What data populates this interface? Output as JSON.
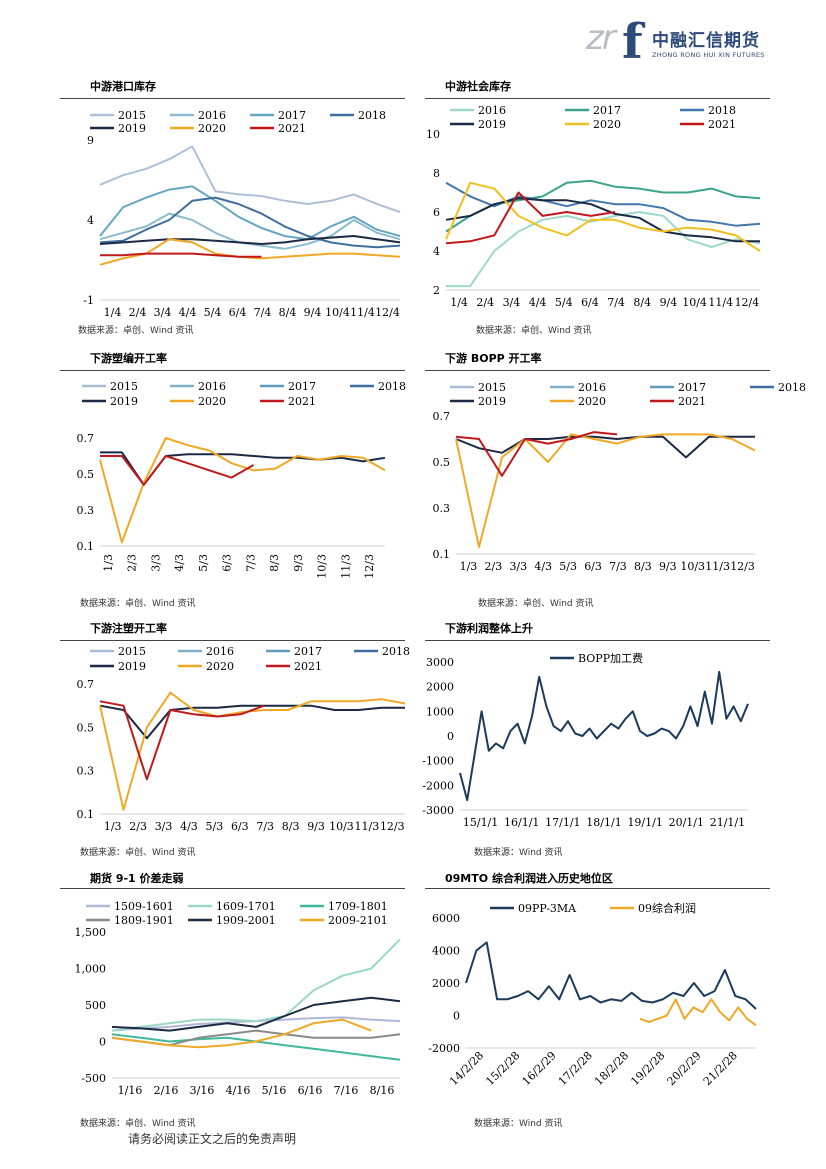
{
  "logo": {
    "mark": "zr",
    "f": "f",
    "cn": "中融汇信期货",
    "en": "ZHONG RONG HUI XIN FUTURES"
  },
  "disclaimer": "请务必阅读正文之后的免责声明",
  "colors": {
    "2015": "#a8bbd6",
    "2016": "#7fb1c8",
    "2017": "#5e9dbd",
    "2018": "#3f6fa0",
    "2019": "#1b2a44",
    "2020": "#f0a826",
    "2021": "#c0191c"
  },
  "chart_data": [
    {
      "id": "c1",
      "type": "line",
      "title": "中游港口库存",
      "source": "数据来源：卓创、Wind 资讯",
      "ylim": [
        -1,
        9
      ],
      "yticks": [
        "9",
        "4",
        "-1"
      ],
      "ytick_values": [
        9,
        4,
        -1
      ],
      "xticks": [
        "1/4",
        "2/4",
        "3/4",
        "4/4",
        "5/4",
        "6/4",
        "7/4",
        "8/4",
        "9/4",
        "10/4",
        "11/4",
        "12/4"
      ],
      "legend_rows": [
        [
          "2015",
          "2016",
          "2017",
          "2018"
        ],
        [
          "2019",
          "2020",
          "2021"
        ]
      ],
      "series": [
        {
          "name": "2015",
          "color": "#aebfd8",
          "values": [
            6.2,
            6.8,
            7.2,
            7.8,
            8.6,
            5.8,
            5.6,
            5.5,
            5.2,
            5.0,
            5.2,
            5.6,
            5.0,
            4.5
          ]
        },
        {
          "name": "2016",
          "color": "#8bbcd0",
          "values": [
            2.8,
            3.2,
            3.6,
            4.4,
            4.0,
            3.2,
            2.6,
            2.4,
            2.2,
            2.5,
            3.0,
            4.0,
            3.2,
            2.8
          ]
        },
        {
          "name": "2017",
          "color": "#66a6c2",
          "values": [
            3.0,
            4.8,
            5.4,
            5.9,
            6.1,
            5.2,
            4.2,
            3.5,
            3.0,
            2.8,
            3.6,
            4.2,
            3.4,
            3.0
          ]
        },
        {
          "name": "2018",
          "color": "#3f6f9e",
          "values": [
            2.6,
            2.7,
            3.4,
            4.0,
            5.2,
            5.4,
            5.0,
            4.4,
            3.6,
            3.0,
            2.6,
            2.4,
            2.3,
            2.4
          ]
        },
        {
          "name": "2019",
          "color": "#1b2a44",
          "values": [
            2.5,
            2.6,
            2.7,
            2.8,
            2.8,
            2.7,
            2.6,
            2.5,
            2.6,
            2.8,
            2.9,
            3.0,
            2.8,
            2.6
          ]
        },
        {
          "name": "2020",
          "color": "#f0a826",
          "values": [
            1.2,
            1.6,
            1.9,
            2.8,
            2.6,
            1.9,
            1.7,
            1.6,
            1.7,
            1.8,
            1.9,
            1.9,
            1.8,
            1.7
          ]
        },
        {
          "name": "2021",
          "color": "#c0191c",
          "values": [
            1.8,
            1.8,
            1.9,
            1.9,
            1.9,
            1.8,
            1.7,
            1.7
          ]
        }
      ]
    },
    {
      "id": "c2",
      "type": "line",
      "title": "中游社会库存",
      "source": "数据来源：卓创、Wind 资讯",
      "ylim": [
        2,
        10
      ],
      "yticks": [
        "10",
        "8",
        "6",
        "4",
        "2"
      ],
      "ytick_values": [
        10,
        8,
        6,
        4,
        2
      ],
      "xticks": [
        "1/4",
        "2/4",
        "3/4",
        "4/4",
        "5/4",
        "6/4",
        "7/4",
        "8/4",
        "9/4",
        "10/4",
        "11/4",
        "12/4"
      ],
      "legend_rows": [
        [
          "2016",
          "2017",
          "2018"
        ],
        [
          "2019",
          "2020",
          "2021"
        ]
      ],
      "series": [
        {
          "name": "2016",
          "color": "#9dd8c8",
          "values": [
            2.2,
            2.2,
            4.0,
            5.0,
            5.6,
            5.8,
            5.5,
            5.8,
            6.0,
            5.8,
            4.6,
            4.2,
            4.6,
            4.4
          ]
        },
        {
          "name": "2017",
          "color": "#3aa48a",
          "values": [
            5.0,
            5.8,
            6.4,
            6.6,
            6.8,
            7.5,
            7.6,
            7.3,
            7.2,
            7.0,
            7.0,
            7.2,
            6.8,
            6.7
          ]
        },
        {
          "name": "2018",
          "color": "#3f77ad",
          "values": [
            7.5,
            6.8,
            6.3,
            6.8,
            6.6,
            6.3,
            6.6,
            6.4,
            6.4,
            6.2,
            5.6,
            5.5,
            5.3,
            5.4
          ]
        },
        {
          "name": "2019",
          "color": "#1b2a44",
          "values": [
            5.6,
            5.8,
            6.4,
            6.7,
            6.6,
            6.6,
            6.4,
            5.9,
            5.7,
            5.0,
            4.8,
            4.7,
            4.5,
            4.5
          ]
        },
        {
          "name": "2020",
          "color": "#f0c020",
          "values": [
            4.6,
            7.5,
            7.2,
            5.8,
            5.2,
            4.8,
            5.6,
            5.6,
            5.2,
            5.0,
            5.2,
            5.1,
            4.8,
            4.0
          ]
        },
        {
          "name": "2021",
          "color": "#c0191c",
          "values": [
            4.4,
            4.5,
            4.8,
            7.0,
            5.8,
            6.0,
            5.8,
            6.0
          ]
        }
      ]
    },
    {
      "id": "c3",
      "type": "line",
      "title": "下游塑编开工率",
      "source": "数据来源：卓创、Wind 资讯",
      "ylim": [
        0.1,
        0.7
      ],
      "yticks": [
        "0.7",
        "0.5",
        "0.3",
        "0.1"
      ],
      "ytick_values": [
        0.7,
        0.5,
        0.3,
        0.1
      ],
      "xticks": [
        "1/3",
        "2/3",
        "3/3",
        "4/3",
        "5/3",
        "6/3",
        "7/3",
        "8/3",
        "9/3",
        "10/3",
        "11/3",
        "12/3"
      ],
      "xrotate": true,
      "legend_rows": [
        [
          "2015",
          "2016",
          "2017",
          "2018"
        ],
        [
          "2019",
          "2020",
          "2021"
        ]
      ],
      "series": [
        {
          "name": "2019",
          "color": "#1b2a44",
          "values": [
            0.62,
            0.62,
            0.44,
            0.6,
            0.61,
            0.61,
            0.61,
            0.6,
            0.59,
            0.59,
            0.58,
            0.59,
            0.57,
            0.59
          ]
        },
        {
          "name": "2020",
          "color": "#f0a826",
          "values": [
            0.58,
            0.12,
            0.45,
            0.7,
            0.66,
            0.63,
            0.56,
            0.52,
            0.53,
            0.6,
            0.58,
            0.6,
            0.59,
            0.52
          ]
        },
        {
          "name": "2021",
          "color": "#c0191c",
          "values": [
            0.6,
            0.6,
            0.44,
            0.6,
            0.56,
            0.52,
            0.48,
            0.55
          ]
        }
      ]
    },
    {
      "id": "c4",
      "type": "line",
      "title": "下游 BOPP 开工率",
      "source": "数据来源：卓创、Wind 资讯",
      "ylim": [
        0.1,
        0.7
      ],
      "yticks": [
        "0.7",
        "0.5",
        "0.3",
        "0.1"
      ],
      "ytick_values": [
        0.7,
        0.5,
        0.3,
        0.1
      ],
      "xticks": [
        "1/3",
        "2/3",
        "3/3",
        "4/3",
        "5/3",
        "6/3",
        "7/3",
        "8/3",
        "9/3",
        "10/3",
        "11/3",
        "12/3"
      ],
      "legend_rows": [
        [
          "2015",
          "2016",
          "2017",
          "2018"
        ],
        [
          "2019",
          "2020",
          "2021"
        ]
      ],
      "series": [
        {
          "name": "2019",
          "color": "#1b2a44",
          "values": [
            0.6,
            0.56,
            0.54,
            0.6,
            0.6,
            0.61,
            0.61,
            0.6,
            0.61,
            0.61,
            0.52,
            0.61,
            0.61,
            0.61
          ]
        },
        {
          "name": "2020",
          "color": "#f0a826",
          "values": [
            0.6,
            0.13,
            0.52,
            0.6,
            0.5,
            0.62,
            0.6,
            0.58,
            0.61,
            0.62,
            0.62,
            0.62,
            0.6,
            0.55
          ]
        },
        {
          "name": "2021",
          "color": "#c0191c",
          "values": [
            0.61,
            0.6,
            0.44,
            0.6,
            0.58,
            0.6,
            0.63,
            0.62
          ]
        }
      ]
    },
    {
      "id": "c5",
      "type": "line",
      "title": "下游注塑开工率",
      "source": "数据来源：卓创、Wind 资讯",
      "ylim": [
        0.1,
        0.7
      ],
      "yticks": [
        "0.7",
        "0.5",
        "0.3",
        "0.1"
      ],
      "ytick_values": [
        0.7,
        0.5,
        0.3,
        0.1
      ],
      "xticks": [
        "1/3",
        "2/3",
        "3/3",
        "4/3",
        "5/3",
        "6/3",
        "7/3",
        "8/3",
        "9/3",
        "10/3",
        "11/3",
        "12/3"
      ],
      "legend_rows": [
        [
          "2015",
          "2016",
          "2017",
          "2018"
        ],
        [
          "2019",
          "2020",
          "2021"
        ]
      ],
      "series": [
        {
          "name": "2019",
          "color": "#1b2a44",
          "values": [
            0.6,
            0.58,
            0.45,
            0.58,
            0.59,
            0.59,
            0.6,
            0.6,
            0.6,
            0.6,
            0.58,
            0.58,
            0.59,
            0.59
          ]
        },
        {
          "name": "2020",
          "color": "#f0a826",
          "values": [
            0.6,
            0.12,
            0.5,
            0.66,
            0.58,
            0.55,
            0.57,
            0.58,
            0.58,
            0.62,
            0.62,
            0.62,
            0.63,
            0.61
          ]
        },
        {
          "name": "2021",
          "color": "#c0191c",
          "values": [
            0.62,
            0.6,
            0.26,
            0.58,
            0.56,
            0.55,
            0.56,
            0.6
          ]
        }
      ]
    },
    {
      "id": "c6",
      "type": "line",
      "title": "下游利润整体上升",
      "source": "数据来源：Wind 资讯",
      "ylim": [
        -3000,
        3000
      ],
      "yticks": [
        "3000",
        "2000",
        "1000",
        "0",
        "-1000",
        "-2000",
        "-3000"
      ],
      "ytick_values": [
        3000,
        2000,
        1000,
        0,
        -1000,
        -2000,
        -3000
      ],
      "xticks": [
        "15/1/1",
        "16/1/1",
        "17/1/1",
        "18/1/1",
        "19/1/1",
        "20/1/1",
        "21/1/1"
      ],
      "legend_rows": [
        [
          "BOPP加工费"
        ]
      ],
      "series": [
        {
          "name": "BOPP加工费",
          "color": "#1b3a5c",
          "values": [
            -1500,
            -2600,
            -800,
            1000,
            -600,
            -300,
            -500,
            200,
            500,
            -300,
            800,
            2400,
            1200,
            400,
            200,
            600,
            100,
            0,
            300,
            -100,
            200,
            500,
            300,
            700,
            1000,
            200,
            0,
            100,
            300,
            200,
            -100,
            400,
            1200,
            400,
            1800,
            500,
            2600,
            700,
            1200,
            600,
            1300
          ]
        }
      ]
    },
    {
      "id": "c7",
      "type": "line",
      "title": "期货 9-1 价差走弱",
      "source": "数据来源：卓创、Wind 资讯",
      "ylim": [
        -500,
        1500
      ],
      "yticks": [
        "1,500",
        "1,000",
        "500",
        "0",
        "-500"
      ],
      "ytick_values": [
        1500,
        1000,
        500,
        0,
        -500
      ],
      "xticks": [
        "1/16",
        "2/16",
        "3/16",
        "4/16",
        "5/16",
        "6/16",
        "7/16",
        "8/16"
      ],
      "legend_rows": [
        [
          "1509-1601",
          "1609-1701",
          "1709-1801"
        ],
        [
          "1809-1901",
          "1909-2001",
          "2009-2101"
        ]
      ],
      "series": [
        {
          "name": "1509-1601",
          "color": "#b0b8d8",
          "values": [
            150,
            180,
            200,
            240,
            260,
            280,
            300,
            320,
            330,
            300,
            280
          ]
        },
        {
          "name": "1609-1701",
          "color": "#9bd8c8",
          "values": [
            150,
            200,
            250,
            300,
            300,
            280,
            350,
            700,
            900,
            1000,
            1400
          ]
        },
        {
          "name": "1709-1801",
          "color": "#40b89a",
          "values": [
            100,
            50,
            0,
            30,
            50,
            0,
            -50,
            -100,
            -150,
            -200,
            -250
          ]
        },
        {
          "name": "1809-1901",
          "color": "#8a8a8a",
          "values": [
            50,
            0,
            -50,
            50,
            100,
            150,
            100,
            50,
            50,
            50,
            100
          ]
        },
        {
          "name": "1909-2001",
          "color": "#1b2a44",
          "values": [
            200,
            180,
            150,
            200,
            250,
            200,
            350,
            500,
            550,
            600,
            550
          ]
        },
        {
          "name": "2009-2101",
          "color": "#f0a826",
          "values": [
            50,
            0,
            -50,
            -80,
            -50,
            0,
            100,
            250,
            300,
            150
          ]
        }
      ]
    },
    {
      "id": "c8",
      "type": "line",
      "title": "09MTO 综合利润进入历史地位区",
      "source": "数据来源：Wind 资讯",
      "ylim": [
        -2000,
        6000
      ],
      "yticks": [
        "6000",
        "4000",
        "2000",
        "0",
        "-2000"
      ],
      "ytick_values": [
        6000,
        4000,
        2000,
        0,
        -2000
      ],
      "xticks": [
        "14/2/28",
        "15/2/28",
        "16/2/29",
        "17/2/28",
        "18/2/28",
        "19/2/28",
        "20/2/29",
        "21/2/28"
      ],
      "xrotate": true,
      "legend_rows": [
        [
          "09PP-3MA",
          "09综合利润"
        ]
      ],
      "series": [
        {
          "name": "09PP-3MA",
          "color": "#1b3a5c",
          "values": [
            2000,
            4000,
            4500,
            1000,
            1000,
            1200,
            1500,
            1000,
            1800,
            1000,
            2500,
            1000,
            1200,
            800,
            1000,
            900,
            1400,
            900,
            800,
            1000,
            1400,
            1200,
            2000,
            1200,
            1500,
            2800,
            1200,
            1000,
            400
          ]
        },
        {
          "name": "09综合利润",
          "color": "#f0a826",
          "start": 0.6,
          "values": [
            -200,
            -400,
            -200,
            0,
            1000,
            -200,
            500,
            200,
            1000,
            200,
            -300,
            500,
            -200,
            -600
          ]
        }
      ]
    }
  ]
}
